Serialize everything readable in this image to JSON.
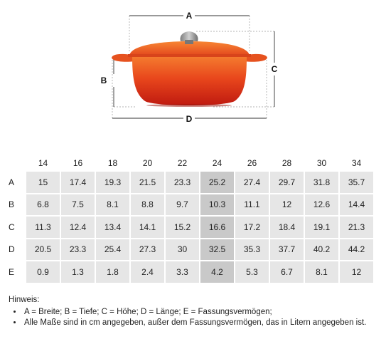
{
  "dimension_labels": {
    "a": "A",
    "b": "B",
    "c": "C",
    "d": "D"
  },
  "table": {
    "sizes": [
      "14",
      "16",
      "18",
      "20",
      "22",
      "24",
      "26",
      "28",
      "30",
      "34"
    ],
    "highlight_column": "24",
    "rows": [
      {
        "label": "A",
        "values": [
          "15",
          "17.4",
          "19.3",
          "21.5",
          "23.3",
          "25.2",
          "27.4",
          "29.7",
          "31.8",
          "35.7"
        ]
      },
      {
        "label": "B",
        "values": [
          "6.8",
          "7.5",
          "8.1",
          "8.8",
          "9.7",
          "10.3",
          "11.1",
          "12",
          "12.6",
          "14.4"
        ]
      },
      {
        "label": "C",
        "values": [
          "11.3",
          "12.4",
          "13.4",
          "14.1",
          "15.2",
          "16.6",
          "17.2",
          "18.4",
          "19.1",
          "21.3"
        ]
      },
      {
        "label": "D",
        "values": [
          "20.5",
          "23.3",
          "25.4",
          "27.3",
          "30",
          "32.5",
          "35.3",
          "37.7",
          "40.2",
          "44.2"
        ]
      },
      {
        "label": "E",
        "values": [
          "0.9",
          "1.3",
          "1.8",
          "2.4",
          "3.3",
          "4.2",
          "5.3",
          "6.7",
          "8.1",
          "12"
        ]
      }
    ]
  },
  "note": {
    "title": "Hinweis:",
    "items": [
      "A = Breite; B = Tiefe; C = Höhe; D = Länge; E = Fassungsvermögen;",
      "Alle Maße sind in cm angegeben, außer dem Fassungsvermögen, das in Litern angegeben ist."
    ]
  },
  "colors": {
    "pot_top": "#f2652a",
    "pot_bottom": "#c81e12",
    "knob": "#9a9a9a",
    "cell_bg": "#e6e6e6",
    "cell_highlight": "#c9c9c9"
  }
}
